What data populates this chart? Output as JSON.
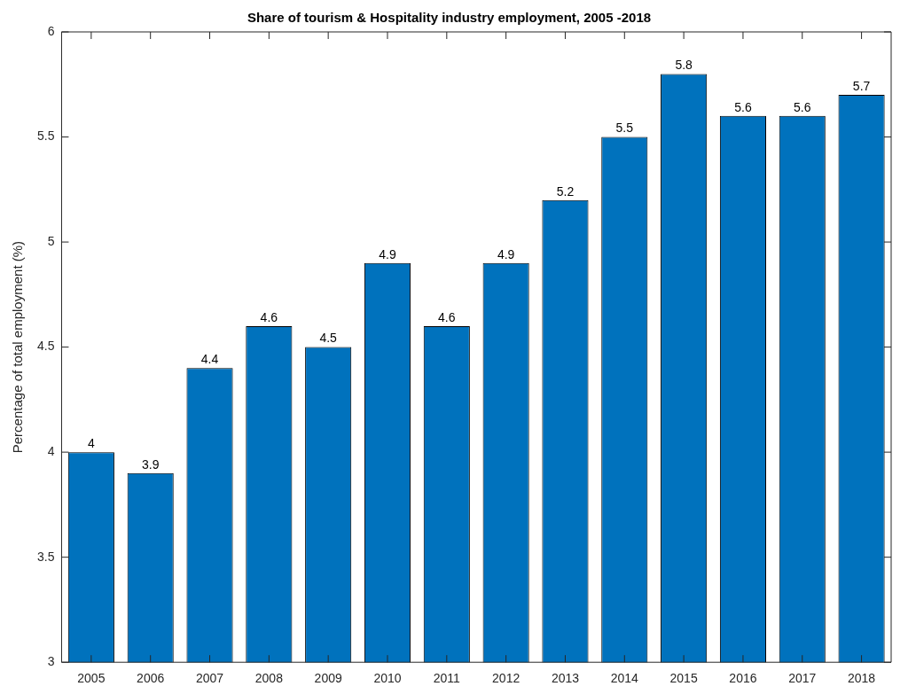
{
  "chart_data": {
    "type": "bar",
    "title": "Share of tourism & Hospitality industry employment, 2005 -2018",
    "ylabel": "Percentage of total employment (%)",
    "categories": [
      "2005",
      "2006",
      "2007",
      "2008",
      "2009",
      "2010",
      "2011",
      "2012",
      "2013",
      "2014",
      "2015",
      "2016",
      "2017",
      "2018"
    ],
    "values": [
      4,
      3.9,
      4.4,
      4.6,
      4.5,
      4.9,
      4.6,
      4.9,
      5.2,
      5.5,
      5.8,
      5.6,
      5.6,
      5.7
    ],
    "color": "#0072bd",
    "ylim": [
      3,
      6
    ],
    "yticks": [
      3,
      3.5,
      4,
      4.5,
      5,
      5.5,
      6
    ],
    "data_labels": true,
    "grid": false,
    "legend": false
  }
}
